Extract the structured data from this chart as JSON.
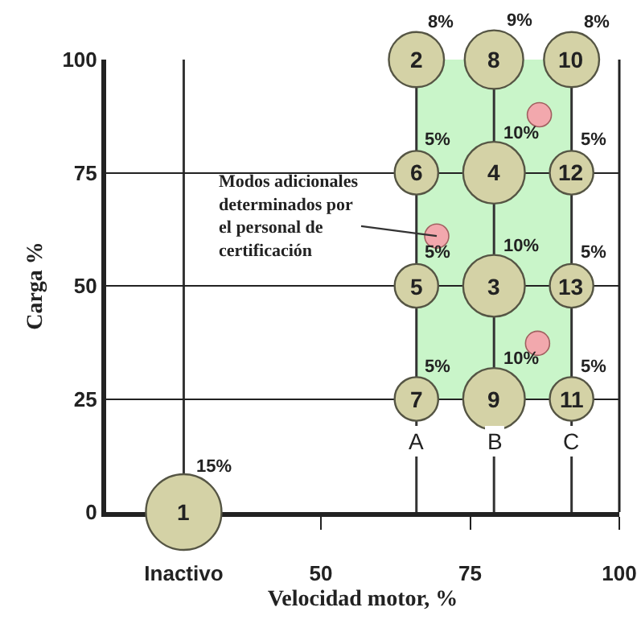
{
  "chart_data": {
    "type": "bubble",
    "xlabel": "Velocidad motor, %",
    "ylabel": "Carga %",
    "xlim": [
      14,
      100
    ],
    "ylim": [
      0,
      100
    ],
    "xticks": [
      {
        "value": 27,
        "label": "Inactivo"
      },
      50,
      75,
      100
    ],
    "yticks": [
      0,
      25,
      50,
      75,
      100
    ],
    "grid": "y",
    "marker": "circle",
    "series": [
      {
        "color": "#d4d2a6",
        "x": [
          27,
          66,
          79,
          79,
          66,
          66,
          66,
          79,
          79,
          92,
          92,
          92,
          92
        ],
        "values": [
          0,
          100,
          50,
          75,
          50,
          75,
          25,
          100,
          25,
          100,
          25,
          75,
          50
        ],
        "sizes": [
          1,
          0.533,
          0.667,
          0.667,
          0.333,
          0.333,
          0.333,
          0.6,
          0.667,
          0.533,
          0.333,
          0.333,
          0.333
        ]
      },
      {
        "type": "scatter",
        "color": "#f2a8ad",
        "x": [
          86.6,
          69.4,
          86.3
        ],
        "values": [
          87.8,
          61,
          37.3
        ]
      }
    ],
    "ref_lines": [
      {
        "axis": "x",
        "value": 27,
        "label": null,
        "color": "#333333"
      },
      {
        "axis": "x",
        "value": 66,
        "label": "A",
        "color": "#333333"
      },
      {
        "axis": "x",
        "value": 79,
        "label": "B",
        "color": "#333333"
      },
      {
        "axis": "x",
        "value": 92,
        "label": "C",
        "color": "#333333"
      }
    ],
    "bands": [
      {
        "axis": "x",
        "from": 66,
        "to": 92,
        "label": null,
        "color": "#c9f5c9"
      }
    ],
    "annotations": [
      {
        "text": "1",
        "x": 27,
        "y": 0
      },
      {
        "text": "2",
        "x": 66,
        "y": 100
      },
      {
        "text": "3",
        "x": 79,
        "y": 50
      },
      {
        "text": "4",
        "x": 79,
        "y": 75
      },
      {
        "text": "5",
        "x": 66,
        "y": 50
      },
      {
        "text": "6",
        "x": 66,
        "y": 75
      },
      {
        "text": "7",
        "x": 66,
        "y": 25
      },
      {
        "text": "8",
        "x": 79,
        "y": 100
      },
      {
        "text": "9",
        "x": 79,
        "y": 25
      },
      {
        "text": "10",
        "x": 92,
        "y": 100
      },
      {
        "text": "11",
        "x": 92,
        "y": 25
      },
      {
        "text": "12",
        "x": 92,
        "y": 75
      },
      {
        "text": "13",
        "x": 92,
        "y": 50
      },
      {
        "text": "15%",
        "x": 27,
        "y": 0
      },
      {
        "text": "8%",
        "x": 66,
        "y": 100
      },
      {
        "text": "10%",
        "x": 79,
        "y": 50
      },
      {
        "text": "10%",
        "x": 79,
        "y": 75
      },
      {
        "text": "5%",
        "x": 66,
        "y": 50
      },
      {
        "text": "5%",
        "x": 66,
        "y": 75
      },
      {
        "text": "5%",
        "x": 66,
        "y": 25
      },
      {
        "text": "9%",
        "x": 79,
        "y": 100
      },
      {
        "text": "10%",
        "x": 79,
        "y": 25
      },
      {
        "text": "8%",
        "x": 92,
        "y": 100
      },
      {
        "text": "5%",
        "x": 92,
        "y": 25
      },
      {
        "text": "5%",
        "x": 92,
        "y": 75
      },
      {
        "text": "5%",
        "x": 92,
        "y": 50
      },
      {
        "text": "Modos adicionales\ndeterminados por\nel personal de\ncertificación",
        "x": 69.4,
        "y": 61
      }
    ]
  }
}
